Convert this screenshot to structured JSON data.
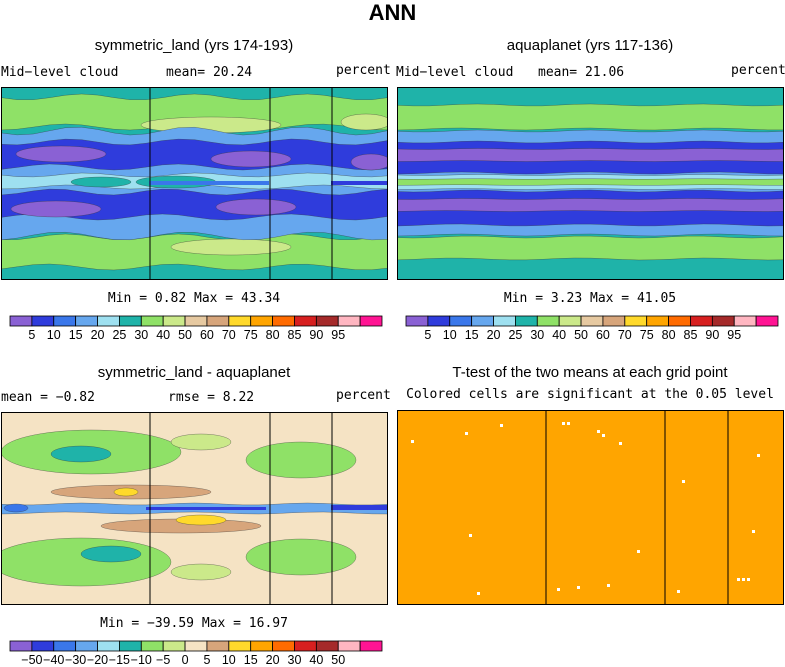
{
  "title": "ANN",
  "colors": {
    "full": [
      "#8a61d4",
      "#2f3cdc",
      "#3a77ea",
      "#66a7ee",
      "#9ee0f0",
      "#1fb3a9",
      "#8fe167",
      "#cbe98a",
      "#e6c9a1",
      "#d7a57b",
      "#ffd92b",
      "#ffa500",
      "#ff6b00",
      "#d72020",
      "#a52a2a",
      "#ffb6c1",
      "#ff1493"
    ],
    "anomaly": [
      "#8a61d4",
      "#2f3cdc",
      "#3a77ea",
      "#66a7ee",
      "#9ee0f0",
      "#1fb3a9",
      "#8fe167",
      "#cbe98a",
      "#f5e3c4",
      "#d7a57b",
      "#ffd92b",
      "#ffa500",
      "#ff6b00",
      "#d72020",
      "#a52a2a",
      "#ffb6c1",
      "#ff1493"
    ],
    "ttest": "#ffa500"
  },
  "panels": {
    "p1": {
      "title": "symmetric_land (yrs 174-193)",
      "left": "Mid−level cloud",
      "stat": "mean=  20.24",
      "right": "percent",
      "minmax": "Min =   0.82 Max =  43.34"
    },
    "p2": {
      "title": "aquaplanet (yrs 117-136)",
      "left": "Mid−level cloud",
      "stat": "mean=  21.06",
      "right": "percent",
      "minmax": "Min =   3.23 Max =  41.05"
    },
    "p3": {
      "title": "symmetric_land - aquaplanet",
      "left": "mean =  −0.82",
      "stat": "rmse =   8.22",
      "right": "percent",
      "minmax": "Min = −39.59 Max =  16.97"
    },
    "p4": {
      "title": "T-test of the two means at each grid point",
      "subtitle": "Colored cells are significant at the 0.05 level"
    }
  },
  "chart_data": [
    {
      "type": "heatmap",
      "title": "symmetric_land (yrs 174-193)",
      "variable": "Mid-level cloud",
      "units": "percent",
      "mean": 20.24,
      "min": 0.82,
      "max": 43.34,
      "levels": [
        5,
        10,
        15,
        20,
        25,
        30,
        40,
        50,
        60,
        70,
        75,
        80,
        85,
        90,
        95
      ],
      "colorbar_labels": [
        "5",
        "10",
        "15",
        "20",
        "25",
        "30",
        "40",
        "50",
        "60",
        "70",
        "75",
        "80",
        "85",
        "90",
        "95"
      ]
    },
    {
      "type": "heatmap",
      "title": "aquaplanet (yrs 117-136)",
      "variable": "Mid-level cloud",
      "units": "percent",
      "mean": 21.06,
      "min": 3.23,
      "max": 41.05,
      "levels": [
        5,
        10,
        15,
        20,
        25,
        30,
        40,
        50,
        60,
        70,
        75,
        80,
        85,
        90,
        95
      ],
      "colorbar_labels": [
        "5",
        "10",
        "15",
        "20",
        "25",
        "30",
        "40",
        "50",
        "60",
        "70",
        "75",
        "80",
        "85",
        "90",
        "95"
      ]
    },
    {
      "type": "heatmap",
      "title": "symmetric_land - aquaplanet",
      "units": "percent",
      "mean": -0.82,
      "rmse": 8.22,
      "min": -39.59,
      "max": 16.97,
      "levels": [
        -50,
        -40,
        -30,
        -20,
        -15,
        -10,
        -5,
        0,
        5,
        10,
        15,
        20,
        30,
        40,
        50
      ],
      "colorbar_labels": [
        "−50",
        "−40",
        "−30",
        "−20",
        "−15",
        "−10",
        "−5",
        "0",
        "5",
        "10",
        "15",
        "20",
        "30",
        "40",
        "50"
      ]
    },
    {
      "type": "heatmap",
      "title": "T-test of the two means at each grid point",
      "subtitle": "Colored cells are significant at the 0.05 level"
    }
  ]
}
